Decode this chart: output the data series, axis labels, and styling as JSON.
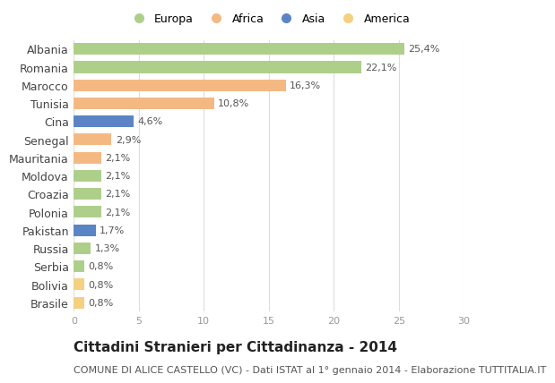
{
  "title": "Cittadini Stranieri per Cittadinanza - 2014",
  "subtitle": "COMUNE DI ALICE CASTELLO (VC) - Dati ISTAT al 1° gennaio 2014 - Elaborazione TUTTITALIA.IT",
  "labels": [
    "Albania",
    "Romania",
    "Marocco",
    "Tunisia",
    "Cina",
    "Senegal",
    "Mauritania",
    "Moldova",
    "Croazia",
    "Polonia",
    "Pakistan",
    "Russia",
    "Serbia",
    "Bolivia",
    "Brasile"
  ],
  "values": [
    25.4,
    22.1,
    16.3,
    10.8,
    4.6,
    2.9,
    2.1,
    2.1,
    2.1,
    2.1,
    1.7,
    1.3,
    0.8,
    0.8,
    0.8
  ],
  "value_labels": [
    "25,4%",
    "22,1%",
    "16,3%",
    "10,8%",
    "4,6%",
    "2,9%",
    "2,1%",
    "2,1%",
    "2,1%",
    "2,1%",
    "1,7%",
    "1,3%",
    "0,8%",
    "0,8%",
    "0,8%"
  ],
  "continent": [
    "Europa",
    "Europa",
    "Africa",
    "Africa",
    "Asia",
    "Africa",
    "Africa",
    "Europa",
    "Europa",
    "Europa",
    "Asia",
    "Europa",
    "Europa",
    "America",
    "America"
  ],
  "colors": {
    "Europa": "#aecf8a",
    "Africa": "#f4b983",
    "Asia": "#5b84c4",
    "America": "#f4d080"
  },
  "legend_order": [
    "Europa",
    "Africa",
    "Asia",
    "America"
  ],
  "xlim": [
    0,
    30
  ],
  "xticks": [
    0,
    5,
    10,
    15,
    20,
    25,
    30
  ],
  "background_color": "#ffffff",
  "grid_color": "#dddddd",
  "bar_height": 0.65,
  "value_fontsize": 8,
  "label_fontsize": 9,
  "title_fontsize": 11,
  "subtitle_fontsize": 8,
  "legend_fontsize": 9,
  "legend_marker_size": 9
}
